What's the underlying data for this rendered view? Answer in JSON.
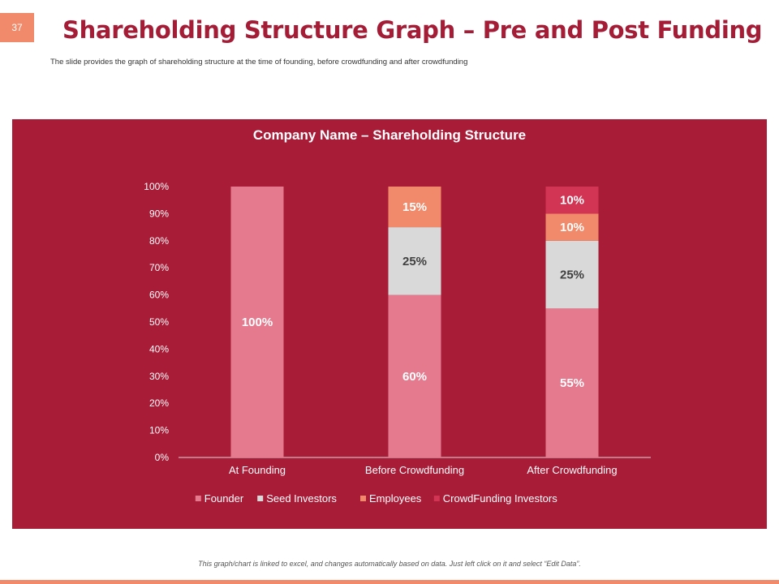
{
  "slide": {
    "page_number": "37",
    "title": "Shareholding Structure Graph – Pre and Post Funding",
    "subtitle": "The slide provides the graph of shareholding structure at the time of founding, before crowdfunding and after crowdfunding",
    "footnote": "This graph/chart is linked to excel, and changes automatically based on data. Just left click on it and select “Edit Data”."
  },
  "colors": {
    "title": "#a51c36",
    "panel_bg": "#a81c38",
    "accent": "#f08a6a",
    "founder": "#e57a8e",
    "seed": "#d9d9d9",
    "employees": "#f08a6a",
    "crowdfunding": "#d13553"
  },
  "chart_data": {
    "type": "bar",
    "stacked": true,
    "title": "Company Name – Shareholding Structure",
    "categories": [
      "At Founding",
      "Before Crowdfunding",
      "After Crowdfunding"
    ],
    "series": [
      {
        "name": "Founder",
        "values": [
          100,
          60,
          55
        ],
        "labels": [
          "100%",
          "60%",
          "55%"
        ],
        "color": "#e57a8e",
        "label_color": "#ffffff"
      },
      {
        "name": "Seed Investors",
        "values": [
          0,
          25,
          25
        ],
        "labels": [
          "",
          "25%",
          "25%"
        ],
        "color": "#d9d9d9",
        "label_color": "#404040"
      },
      {
        "name": "Employees",
        "values": [
          0,
          15,
          10
        ],
        "labels": [
          "",
          "15%",
          "10%"
        ],
        "color": "#f08a6a",
        "label_color": "#ffffff"
      },
      {
        "name": "CrowdFunding Investors",
        "values": [
          0,
          0,
          10
        ],
        "labels": [
          "",
          "",
          "10%"
        ],
        "color": "#d13553",
        "label_color": "#ffffff"
      }
    ],
    "ylim": [
      0,
      100
    ],
    "yticks": [
      "0%",
      "10%",
      "20%",
      "30%",
      "40%",
      "50%",
      "60%",
      "70%",
      "80%",
      "90%",
      "100%"
    ],
    "legend": "bottom",
    "xlabel": "",
    "ylabel": ""
  }
}
